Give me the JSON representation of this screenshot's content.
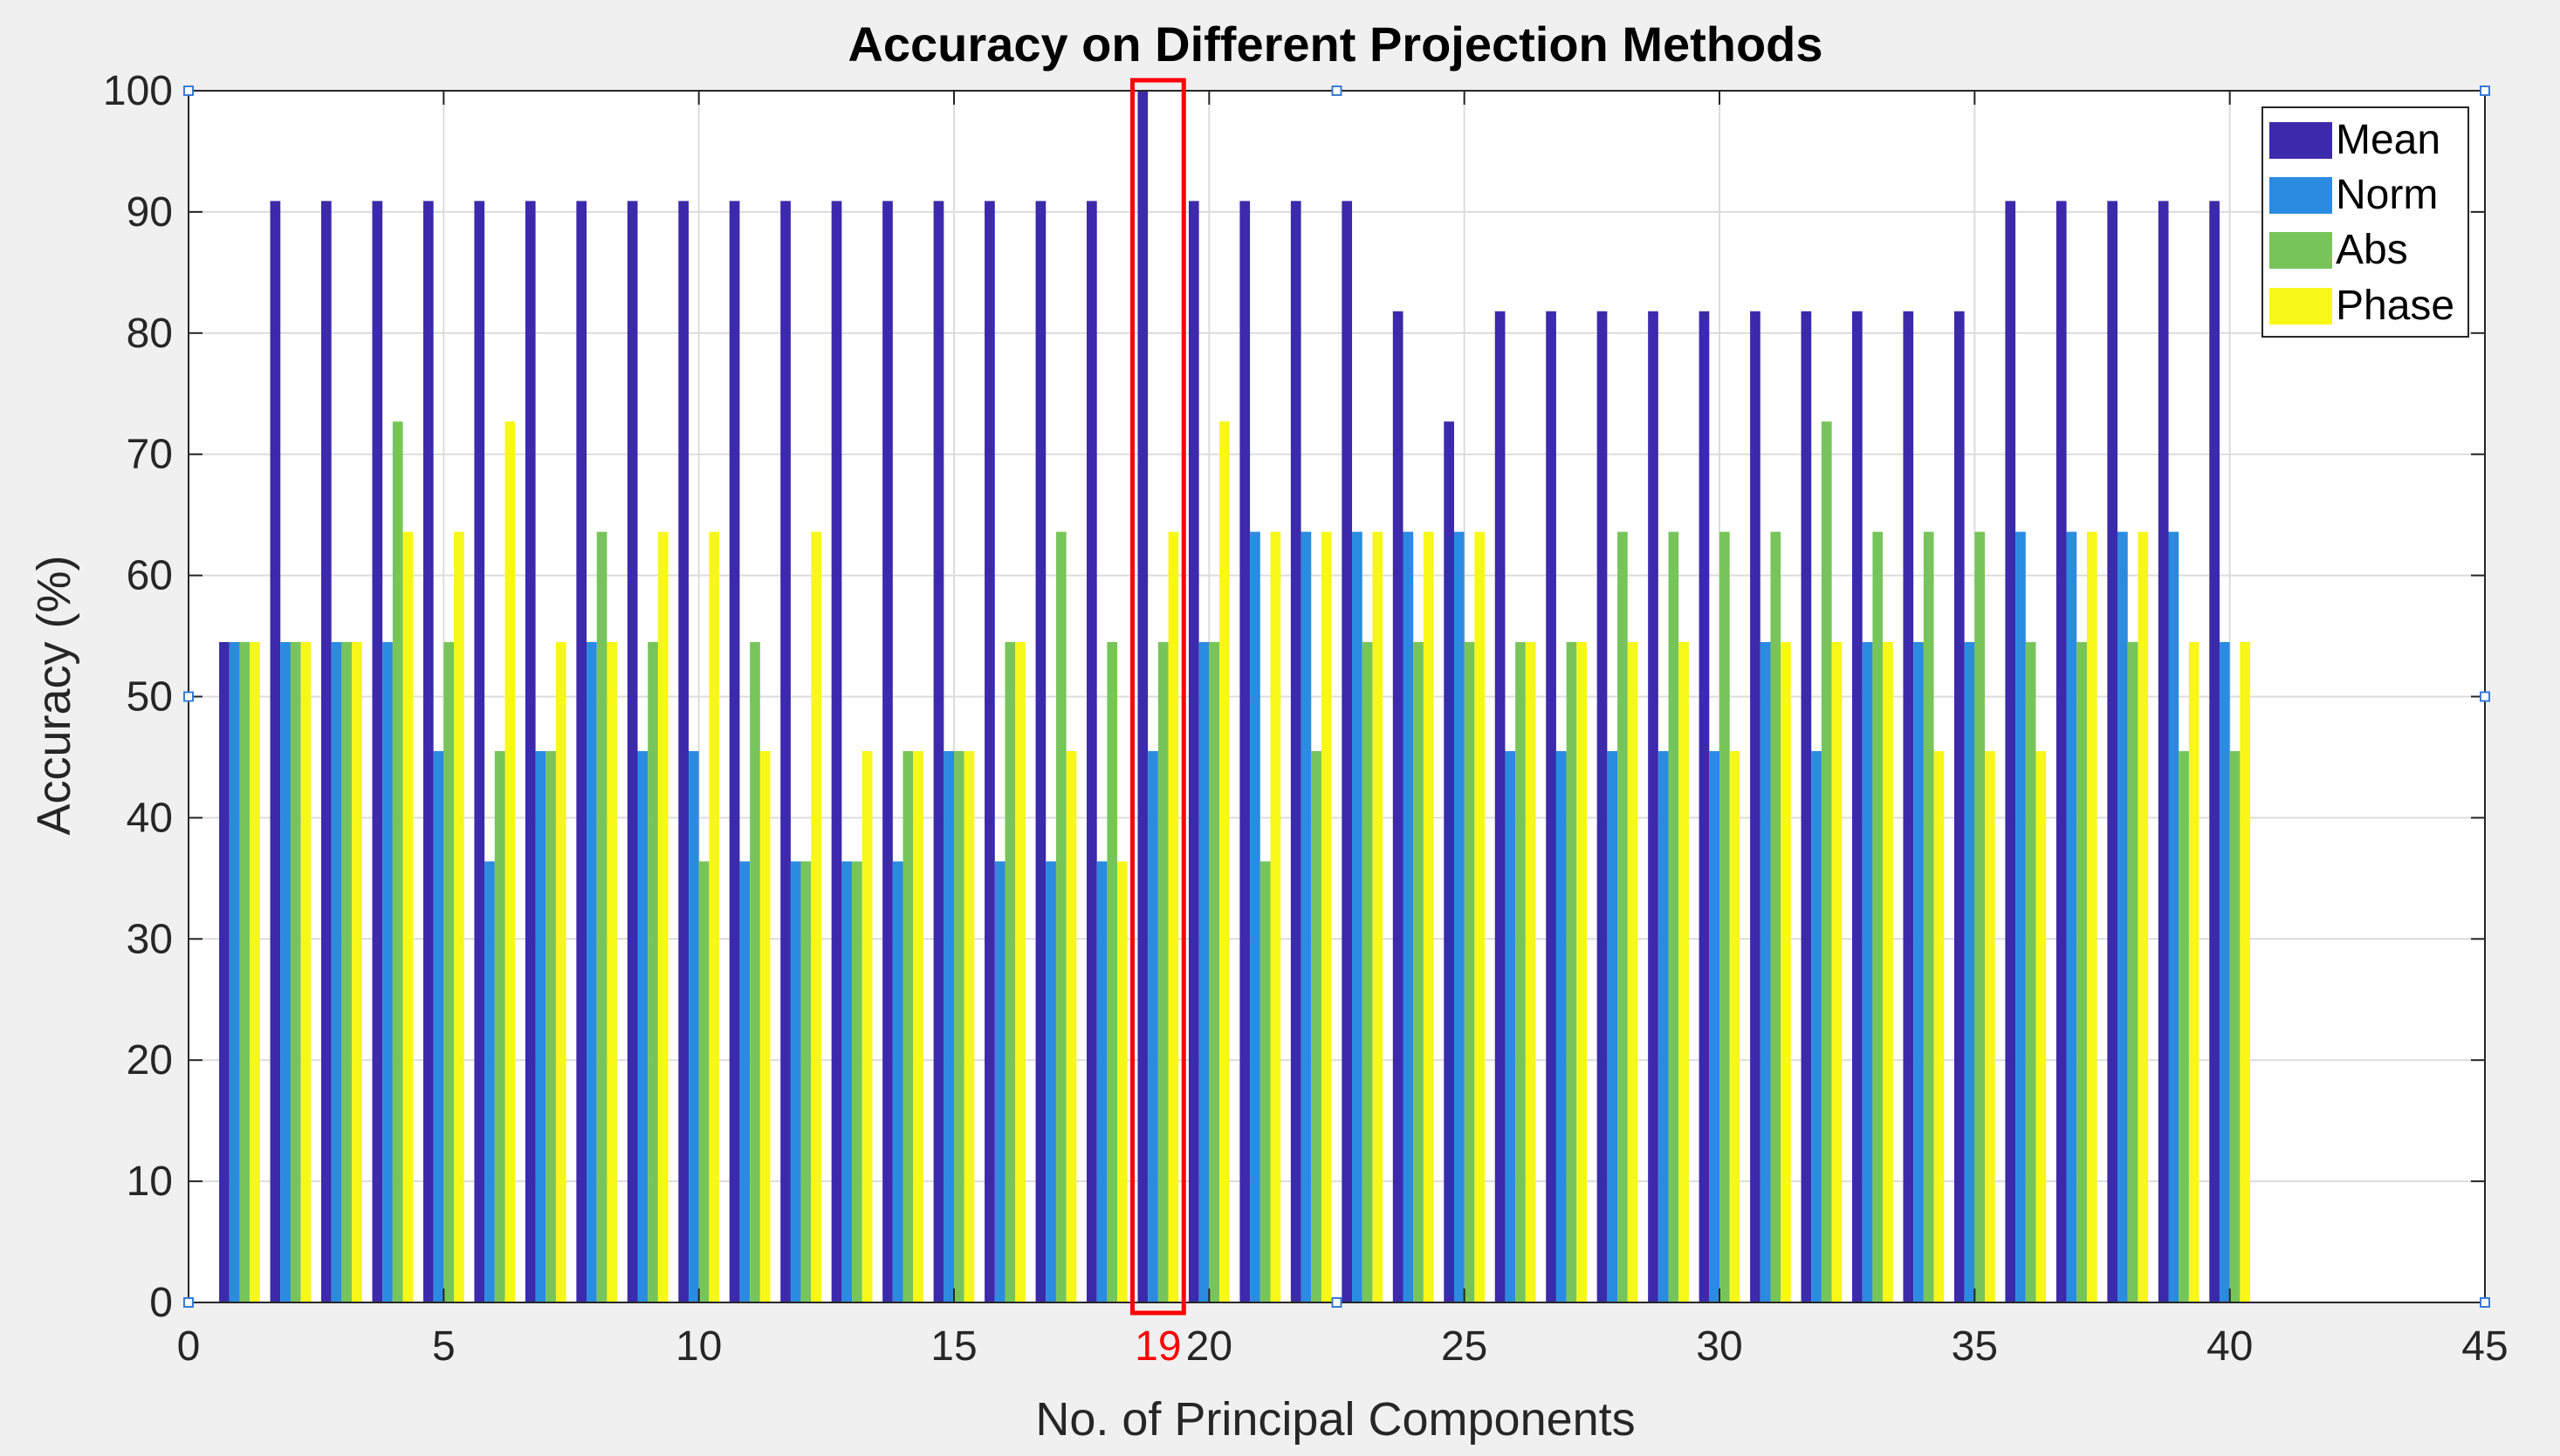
{
  "chart_data": {
    "type": "bar",
    "title": "Accuracy on Different Projection Methods",
    "xlabel": "No. of Principal Components",
    "ylabel": "Accuracy (%)",
    "xlim": [
      0,
      45
    ],
    "ylim": [
      0,
      100
    ],
    "xticks": [
      0,
      5,
      10,
      15,
      20,
      25,
      30,
      35,
      40,
      45
    ],
    "yticks": [
      0,
      10,
      20,
      30,
      40,
      50,
      60,
      70,
      80,
      90,
      100
    ],
    "grid": true,
    "legend_position": "top-right",
    "highlight": {
      "x": 19,
      "label": "19",
      "color": "#ff0000"
    },
    "x": [
      1,
      2,
      3,
      4,
      5,
      6,
      7,
      8,
      9,
      10,
      11,
      12,
      13,
      14,
      15,
      16,
      17,
      18,
      19,
      20,
      21,
      22,
      23,
      24,
      25,
      26,
      27,
      28,
      29,
      30,
      31,
      32,
      33,
      34,
      35,
      36,
      37,
      38,
      39,
      40
    ],
    "series": [
      {
        "name": "Mean",
        "color": "#3b2aab",
        "values": [
          54.5,
          90.9,
          90.9,
          90.9,
          90.9,
          90.9,
          90.9,
          90.9,
          90.9,
          90.9,
          90.9,
          90.9,
          90.9,
          90.9,
          90.9,
          90.9,
          90.9,
          90.9,
          100,
          90.9,
          90.9,
          90.9,
          90.9,
          81.8,
          72.7,
          81.8,
          81.8,
          81.8,
          81.8,
          81.8,
          81.8,
          81.8,
          81.8,
          81.8,
          81.8,
          90.9,
          90.9,
          90.9,
          90.9,
          90.9
        ]
      },
      {
        "name": "Norm",
        "color": "#2b8be0",
        "values": [
          54.5,
          54.5,
          54.5,
          54.5,
          45.5,
          36.4,
          45.5,
          54.5,
          45.5,
          45.5,
          36.4,
          36.4,
          36.4,
          36.4,
          45.5,
          36.4,
          36.4,
          36.4,
          45.5,
          54.5,
          63.6,
          63.6,
          63.6,
          63.6,
          63.6,
          45.5,
          45.5,
          45.5,
          45.5,
          45.5,
          54.5,
          45.5,
          54.5,
          54.5,
          54.5,
          63.6,
          63.6,
          63.6,
          63.6,
          54.5
        ]
      },
      {
        "name": "Abs",
        "color": "#77c55a",
        "values": [
          54.5,
          54.5,
          54.5,
          72.7,
          54.5,
          45.5,
          45.5,
          63.6,
          54.5,
          36.4,
          54.5,
          36.4,
          36.4,
          45.5,
          45.5,
          54.5,
          63.6,
          54.5,
          54.5,
          54.5,
          36.4,
          45.5,
          54.5,
          54.5,
          54.5,
          54.5,
          54.5,
          63.6,
          63.6,
          63.6,
          63.6,
          72.7,
          63.6,
          63.6,
          63.6,
          54.5,
          54.5,
          54.5,
          45.5,
          45.5
        ]
      },
      {
        "name": "Phase",
        "color": "#f7f718",
        "values": [
          54.5,
          54.5,
          54.5,
          63.6,
          63.6,
          72.7,
          54.5,
          54.5,
          63.6,
          63.6,
          45.5,
          63.6,
          45.5,
          45.5,
          45.5,
          54.5,
          45.5,
          36.4,
          63.6,
          72.7,
          63.6,
          63.6,
          63.6,
          63.6,
          63.6,
          54.5,
          54.5,
          54.5,
          54.5,
          45.5,
          54.5,
          54.5,
          54.5,
          45.5,
          45.5,
          45.5,
          63.6,
          63.6,
          54.5,
          54.5
        ]
      }
    ]
  }
}
